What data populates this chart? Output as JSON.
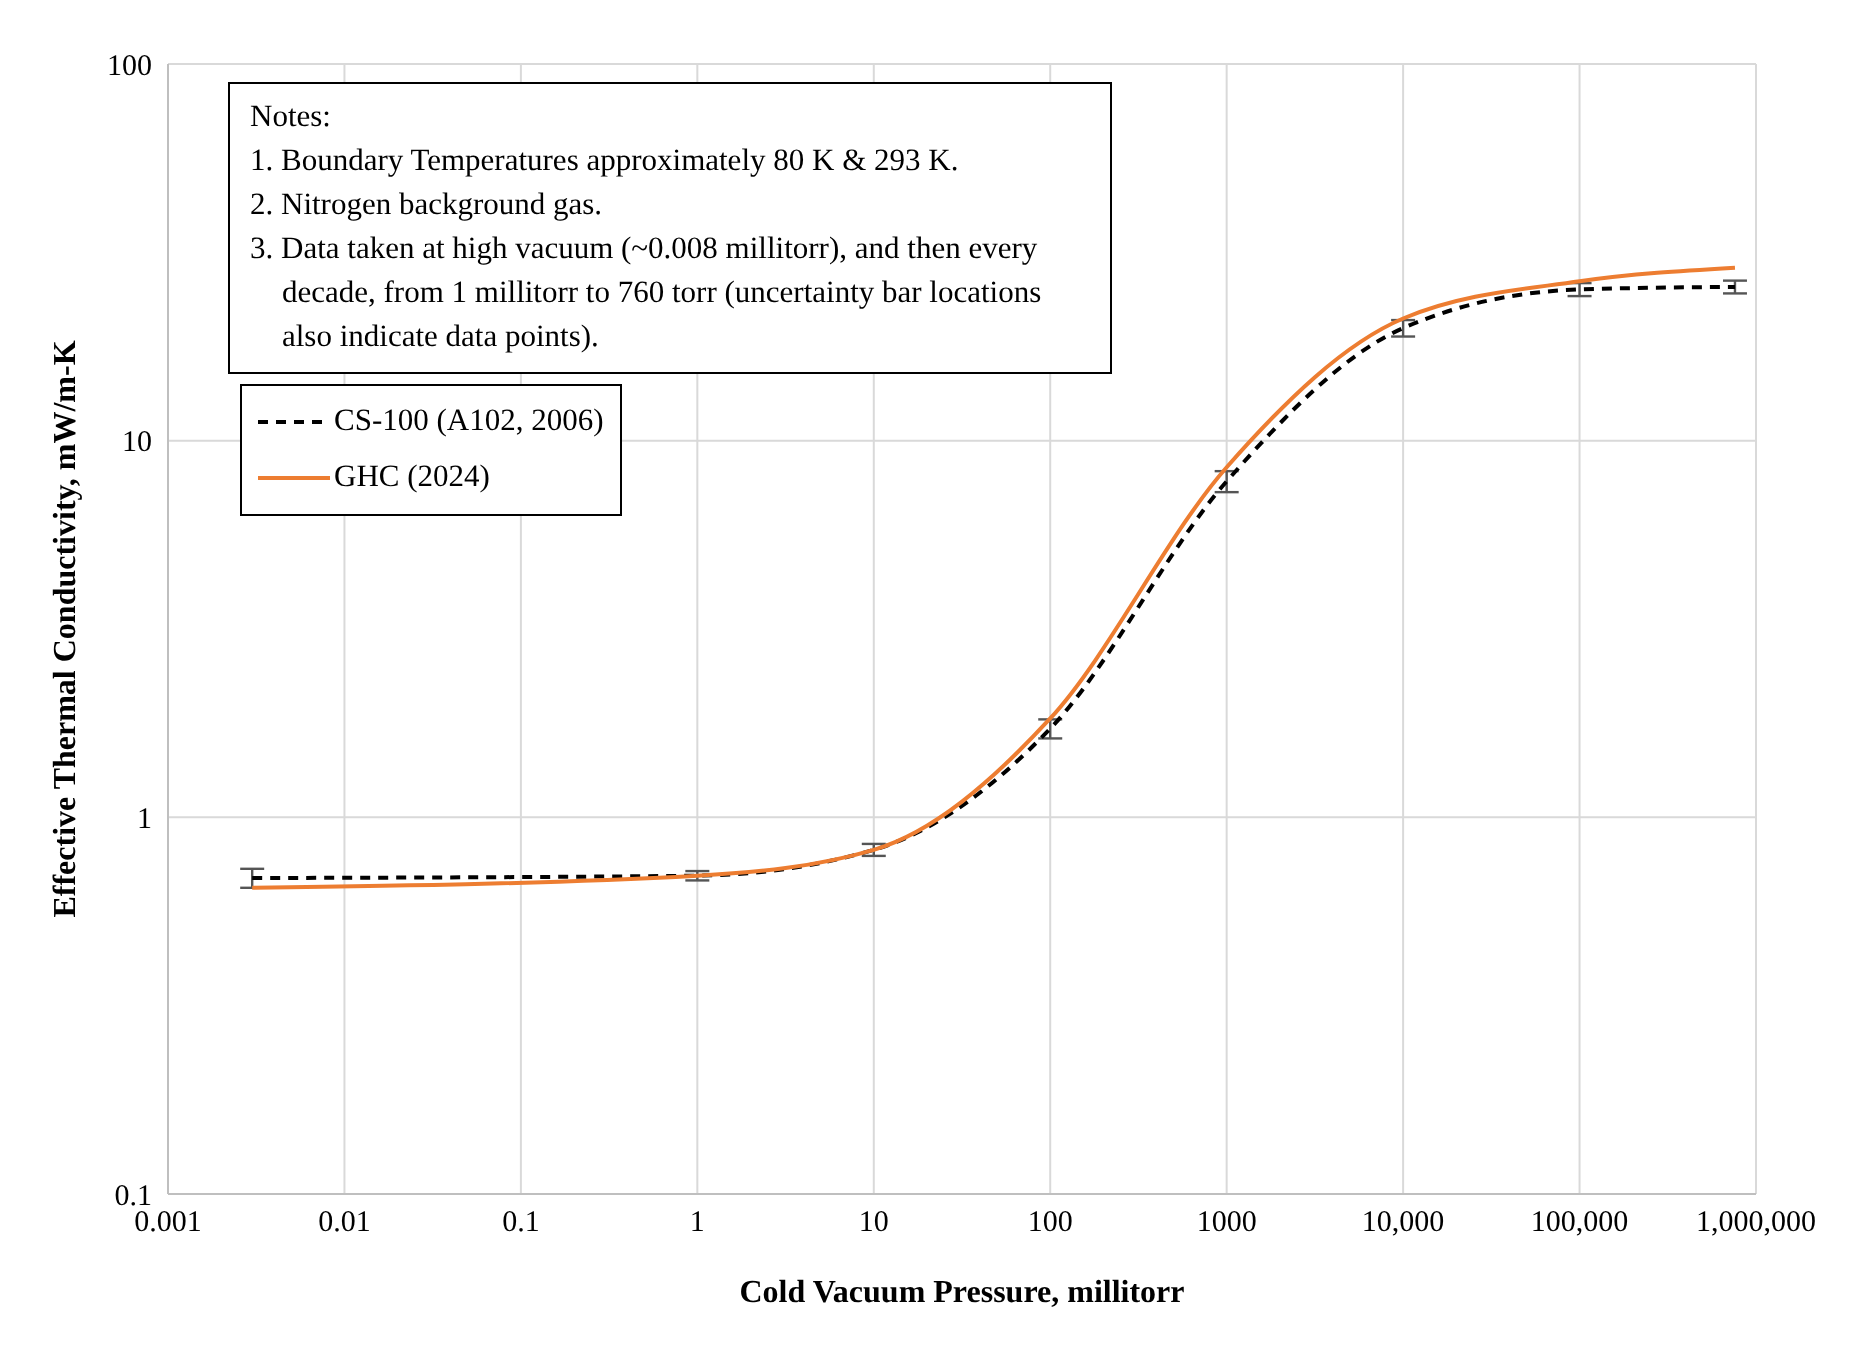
{
  "chart_data": {
    "type": "line",
    "xlabel": "Cold Vacuum Pressure, millitorr",
    "ylabel": "Effective Thermal Conductivity, mW/m-K",
    "annotations": [
      "Notes:",
      "1. Boundary Temperatures approximately 80 K & 293 K.",
      "2. Nitrogen background gas.",
      "3. Data taken at high vacuum (~0.008 millitorr), and then every decade, from 1 millitorr to 760 torr (uncertainty bar locations also indicate data points)."
    ],
    "x": [
      0.003,
      1,
      10,
      100,
      1000,
      10000,
      100000,
      760000
    ],
    "series": [
      {
        "name": "CS-100 (A102, 2006)",
        "color": "#000000",
        "line_style": "dashed",
        "values": [
          0.69,
          0.7,
          0.82,
          1.72,
          7.8,
          19.9,
          25.2,
          25.6
        ],
        "errors": [
          0.04,
          0.02,
          0.03,
          0.1,
          0.5,
          1,
          1,
          1
        ]
      },
      {
        "name": "GHC (2024)",
        "color": "#ed7d31",
        "line_style": "solid",
        "values": [
          0.65,
          0.7,
          0.82,
          1.83,
          8.5,
          21.1,
          26.5,
          28.8
        ]
      }
    ],
    "log": "xy",
    "xlim": [
      0.001,
      1000000
    ],
    "ylim": [
      0.1,
      100
    ],
    "xticks": [
      0.001,
      0.01,
      0.1,
      1,
      10,
      100,
      1000,
      {
        "value": 10000,
        "label": "10,000"
      },
      {
        "value": 100000,
        "label": "100,000"
      },
      {
        "value": 1000000,
        "label": "1,000,000"
      }
    ],
    "yticks": [
      0.1,
      1,
      10,
      100
    ],
    "grid": true,
    "legend": "top left",
    "marker": "none"
  }
}
